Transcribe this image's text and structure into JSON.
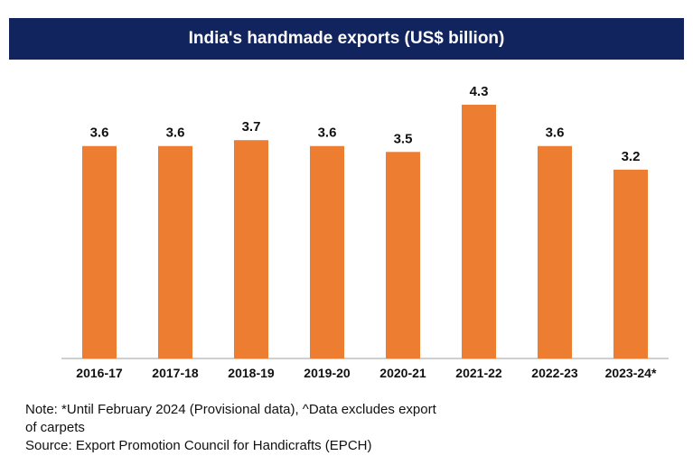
{
  "chart_data": {
    "type": "bar",
    "title": "India's handmade exports (US$ billion)",
    "categories": [
      "2016-17",
      "2017-18",
      "2018-19",
      "2019-20",
      "2020-21",
      "2021-22",
      "2022-23",
      "2023-24*"
    ],
    "values": [
      3.6,
      3.6,
      3.7,
      3.6,
      3.5,
      4.3,
      3.6,
      3.2
    ],
    "data_labels": [
      "3.6",
      "3.6",
      "3.7",
      "3.6",
      "3.5",
      "4.3",
      "3.6",
      "3.2"
    ],
    "xlabel": "",
    "ylabel": "",
    "ylim": [
      0,
      4.3
    ],
    "grid": false,
    "legend": "none",
    "bar_color": "#ed7d31"
  },
  "notes": {
    "note_line1": "Note: *Until February 2024 (Provisional data), ^Data excludes export",
    "note_line2": "of carpets",
    "source": "Source: Export Promotion Council for Handicrafts (EPCH)"
  },
  "colors": {
    "title_bar": "#12245e",
    "bar": "#ed7d31"
  }
}
